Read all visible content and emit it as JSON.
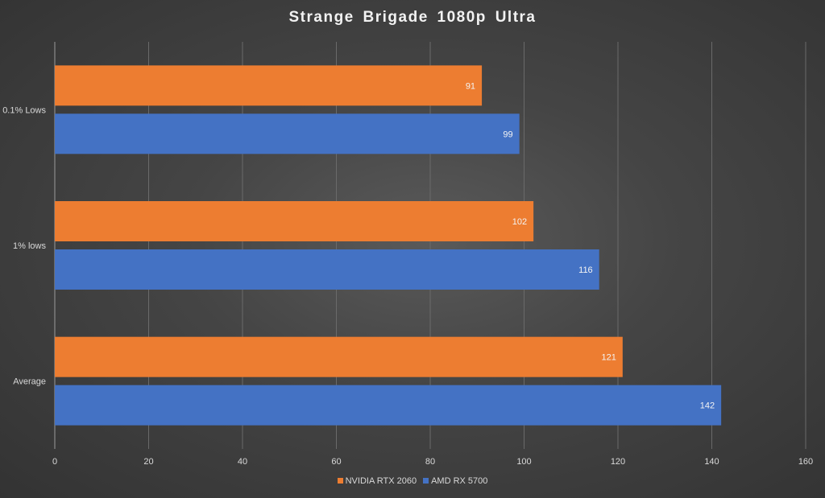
{
  "chart_data": {
    "type": "bar",
    "orientation": "horizontal",
    "title": "Strange  Brigade  1080p  Ultra",
    "categories": [
      "0.1% Lows",
      "1% lows",
      "Average"
    ],
    "series": [
      {
        "name": "NVIDIA RTX 2060",
        "values": [
          91,
          102,
          121
        ],
        "color": "#ed7d31"
      },
      {
        "name": "AMD RX 5700",
        "values": [
          99,
          116,
          142
        ],
        "color": "#4472c4"
      }
    ],
    "xlim": [
      0,
      160
    ],
    "xticks": [
      "0",
      "20",
      "40",
      "60",
      "80",
      "100",
      "120",
      "140",
      "160"
    ],
    "xlabel": "",
    "ylabel": "",
    "grid": true,
    "data_labels": true,
    "legend_position": "bottom"
  }
}
